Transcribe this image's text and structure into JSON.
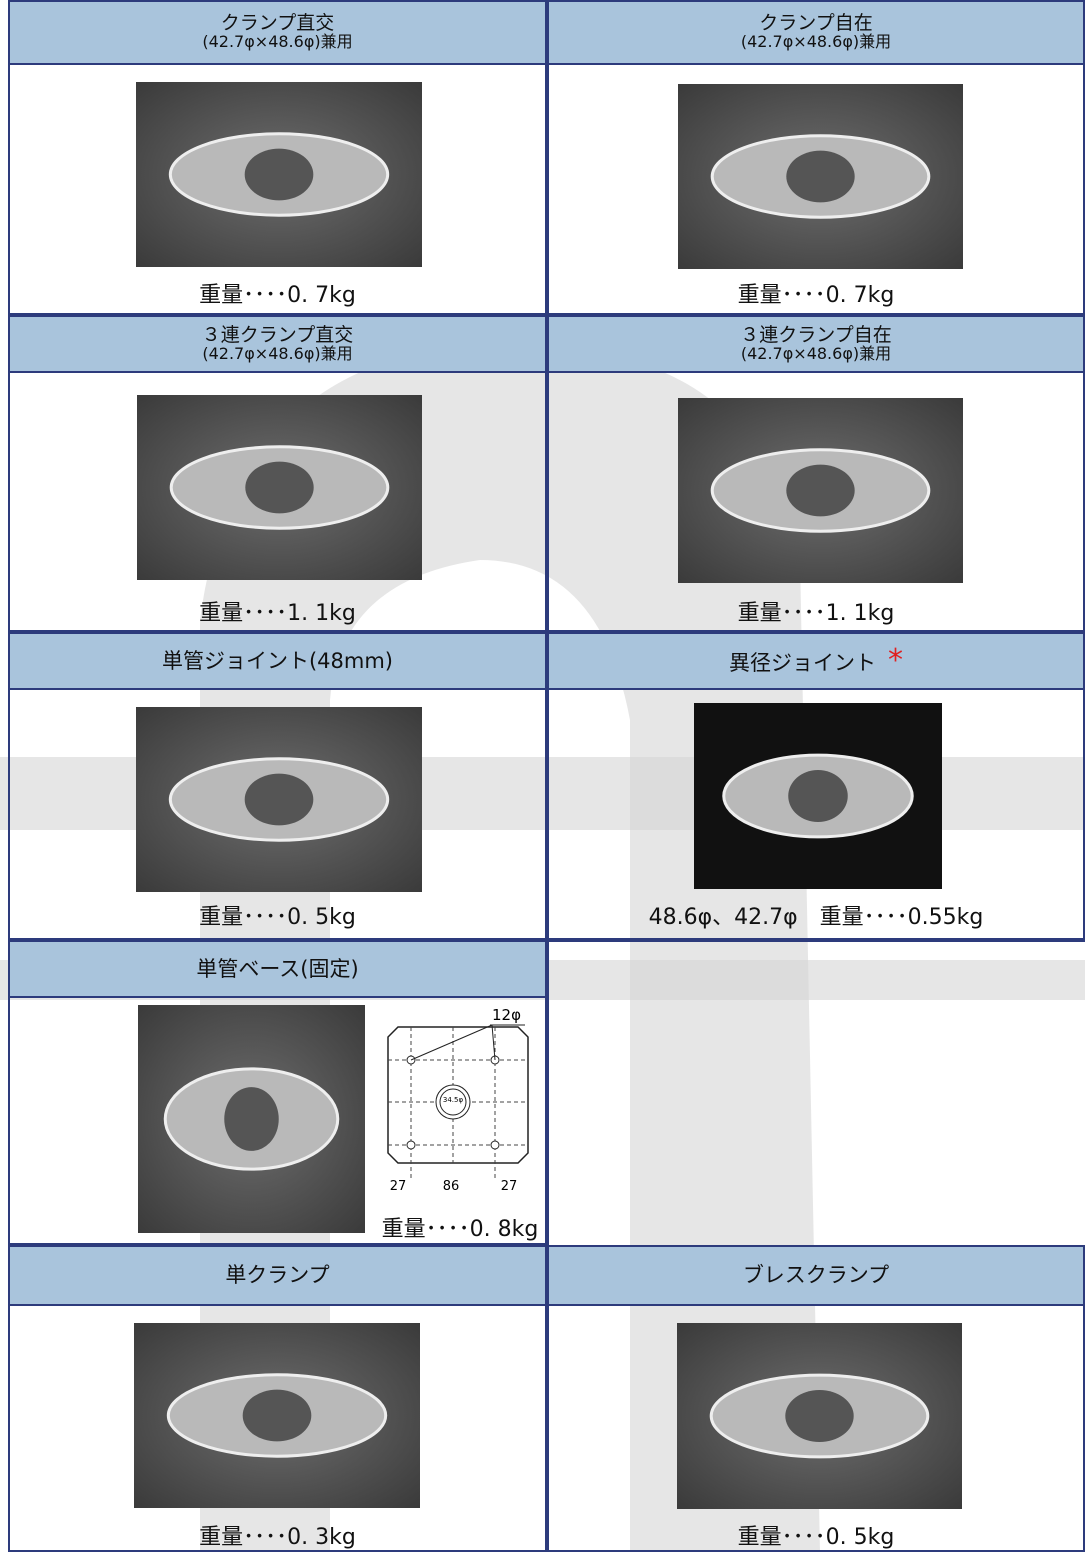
{
  "items": [
    {
      "title": "クランプ直交",
      "subtitle": "(42.7φ×48.6φ)兼用",
      "weight": "重量････0. 7kg"
    },
    {
      "title": "クランプ自在",
      "subtitle": "(42.7φ×48.6φ)兼用",
      "weight": "重量････0. 7kg"
    },
    {
      "title": "３連クランプ直交",
      "subtitle": "(42.7φ×48.6φ)兼用",
      "weight": "重量････1. 1kg"
    },
    {
      "title": "３連クランプ自在",
      "subtitle": "(42.7φ×48.6φ)兼用",
      "weight": "重量････1. 1kg"
    },
    {
      "title": "単管ジョイント(48mm)",
      "weight": "重量････0. 5kg"
    },
    {
      "title": "異径ジョイント",
      "mark": "*",
      "weight": "48.6φ、42.7φ　重量････0.55kg"
    },
    {
      "title": "単管ベース(固定)",
      "weight": "重量････0. 8kg",
      "diagram": {
        "hole": "12φ",
        "center": "34.5φ",
        "dims": [
          "27",
          "86",
          "27"
        ]
      }
    },
    {
      "title": "単クランプ",
      "weight": "重量････0. 3kg"
    },
    {
      "title": "ブレスクランプ",
      "weight": "重量････0. 5kg"
    }
  ]
}
